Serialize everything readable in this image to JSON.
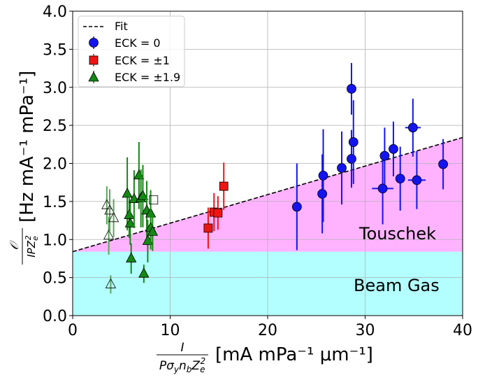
{
  "chart_data": {
    "type": "scatter",
    "xlim": [
      0,
      40
    ],
    "ylim": [
      0,
      4
    ],
    "x_ticks": [
      0,
      10,
      20,
      30,
      40
    ],
    "y_ticks": [
      0.0,
      0.5,
      1.0,
      1.5,
      2.0,
      2.5,
      3.0,
      3.5,
      4.0
    ],
    "x_tick_labels": [
      "0",
      "10",
      "20",
      "30",
      "40"
    ],
    "y_tick_labels": [
      "0.0",
      "0.5",
      "1.0",
      "1.5",
      "2.0",
      "2.5",
      "3.0",
      "3.5",
      "4.0"
    ],
    "xlabel_units": "[mA mPa⁻¹ μm⁻¹]",
    "ylabel_units": "[Hz mA⁻¹ mPa⁻¹]",
    "grid": true,
    "legend_position": "top-left",
    "fit": {
      "label": "Fit",
      "intercept": 0.84,
      "slope": 0.0375,
      "style": "dashed",
      "color": "#000000"
    },
    "regions": [
      {
        "label": "Beam Gas",
        "y_from": 0,
        "y_to": 0.84,
        "color": "#b3ffff"
      },
      {
        "label": "Touschek",
        "below": "fit",
        "color": "#ffb3ff"
      }
    ],
    "series": [
      {
        "name": "ECK = 0",
        "marker": "circle",
        "color": "#1414ee",
        "points": [
          {
            "x": 23.0,
            "y": 1.43,
            "yerr": 0.57,
            "xerr": 0
          },
          {
            "x": 25.6,
            "y": 1.6,
            "yerr": 0.52,
            "xerr": 0
          },
          {
            "x": 25.7,
            "y": 1.84,
            "yerr": 0.61,
            "xerr": 0
          },
          {
            "x": 27.6,
            "y": 1.94,
            "yerr": 0.48,
            "xerr": 0
          },
          {
            "x": 28.6,
            "y": 2.06,
            "yerr": 0.38,
            "xerr": 0
          },
          {
            "x": 28.6,
            "y": 2.98,
            "yerr": 0.34,
            "xerr": 0
          },
          {
            "x": 28.8,
            "y": 2.28,
            "yerr": 0.55,
            "xerr": 0
          },
          {
            "x": 31.8,
            "y": 1.67,
            "yerr": 0.47,
            "xerr": 1.1
          },
          {
            "x": 32.0,
            "y": 2.1,
            "yerr": 0.37,
            "xerr": 0
          },
          {
            "x": 32.9,
            "y": 2.19,
            "yerr": 0.36,
            "xerr": 0
          },
          {
            "x": 33.6,
            "y": 1.8,
            "yerr": 0.42,
            "xerr": 0
          },
          {
            "x": 34.9,
            "y": 2.47,
            "yerr": 0.38,
            "xerr": 0.8
          },
          {
            "x": 35.3,
            "y": 1.78,
            "yerr": 0.38,
            "xerr": 0.9
          },
          {
            "x": 38.0,
            "y": 1.99,
            "yerr": 0.33,
            "xerr": 0
          }
        ]
      },
      {
        "name": "ECK = ±1",
        "marker": "square",
        "color": "#ee1414",
        "points": [
          {
            "x": 13.9,
            "y": 1.15,
            "yerr": 0.27,
            "xerr": 0
          },
          {
            "x": 14.5,
            "y": 1.36,
            "yerr": 0.25,
            "xerr": 0
          },
          {
            "x": 14.9,
            "y": 1.35,
            "yerr": 0.22,
            "xerr": 0
          },
          {
            "x": 15.5,
            "y": 1.7,
            "yerr": 0.31,
            "xerr": 0
          }
        ]
      },
      {
        "name": "ECK = ±1.9",
        "marker": "triangle",
        "color": "#148814",
        "points": [
          {
            "x": 5.6,
            "y": 1.6,
            "yerr": 0.48,
            "xerr": 0
          },
          {
            "x": 5.8,
            "y": 1.32,
            "yerr": 0.3,
            "xerr": 0
          },
          {
            "x": 5.9,
            "y": 1.21,
            "yerr": 0.28,
            "xerr": 0
          },
          {
            "x": 6.0,
            "y": 0.75,
            "yerr": 0.2,
            "xerr": 0
          },
          {
            "x": 6.3,
            "y": 1.53,
            "yerr": 0.38,
            "xerr": 0
          },
          {
            "x": 6.8,
            "y": 1.84,
            "yerr": 0.44,
            "xerr": 0
          },
          {
            "x": 7.0,
            "y": 1.54,
            "yerr": 0.38,
            "xerr": 0
          },
          {
            "x": 7.2,
            "y": 1.57,
            "yerr": 0.41,
            "xerr": 0
          },
          {
            "x": 7.3,
            "y": 0.55,
            "yerr": 0.12,
            "xerr": 0
          },
          {
            "x": 7.6,
            "y": 1.38,
            "yerr": 0.39,
            "xerr": 0
          },
          {
            "x": 7.7,
            "y": 0.98,
            "yerr": 0.28,
            "xerr": 0
          },
          {
            "x": 8.0,
            "y": 1.34,
            "yerr": 0.31,
            "xerr": 0
          },
          {
            "x": 8.0,
            "y": 1.15,
            "yerr": 0.28,
            "xerr": 0
          },
          {
            "x": 8.2,
            "y": 1.1,
            "yerr": 0.25,
            "xerr": 0
          }
        ]
      },
      {
        "marker": "triangle-open",
        "color": "#000000",
        "errcolor": "#5aa55a",
        "points": [
          {
            "x": 3.5,
            "y": 1.45,
            "yerr": 0.25,
            "xerr": 0
          },
          {
            "x": 3.7,
            "y": 1.05,
            "yerr": 0.25,
            "xerr": 0
          },
          {
            "x": 3.8,
            "y": 1.38,
            "yerr": 0.28,
            "xerr": 0
          },
          {
            "x": 3.9,
            "y": 0.41,
            "yerr": 0.12,
            "xerr": 0
          },
          {
            "x": 4.2,
            "y": 1.28,
            "yerr": 0.25,
            "xerr": 0
          }
        ]
      },
      {
        "marker": "square-open",
        "color": "#000000",
        "errcolor": "#5aa55a",
        "points": [
          {
            "x": 8.3,
            "y": 1.52,
            "yerr": 0.0,
            "xerr": 0
          }
        ]
      }
    ],
    "annotations": [
      "Touschek",
      "Beam Gas"
    ]
  },
  "legend": {
    "fit": "Fit",
    "eck0": "ECK = 0",
    "eck1": "ECK = ±1",
    "eck19": "ECK = ±1.9"
  },
  "labels": {
    "touschek": "Touschek",
    "beam_gas": "Beam Gas"
  }
}
